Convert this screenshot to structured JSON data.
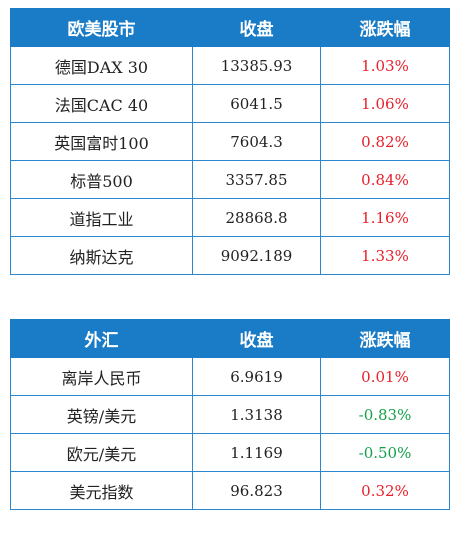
{
  "indices": {
    "headers": [
      "欧美股市",
      "收盘",
      "涨跌幅"
    ],
    "rows": [
      {
        "name": "德国DAX 30",
        "close": "13385.93",
        "change": "1.03%",
        "direction": "up"
      },
      {
        "name": "法国CAC 40",
        "close": "6041.5",
        "change": "1.06%",
        "direction": "up"
      },
      {
        "name": "英国富时100",
        "close": "7604.3",
        "change": "0.82%",
        "direction": "up"
      },
      {
        "name": "标普500",
        "close": "3357.85",
        "change": "0.84%",
        "direction": "up"
      },
      {
        "name": "道指工业",
        "close": "28868.8",
        "change": "1.16%",
        "direction": "up"
      },
      {
        "name": "纳斯达克",
        "close": "9092.189",
        "change": "1.33%",
        "direction": "up"
      }
    ]
  },
  "fx": {
    "headers": [
      "外汇",
      "收盘",
      "涨跌幅"
    ],
    "rows": [
      {
        "name": "离岸人民币",
        "close": "6.9619",
        "change": "0.01%",
        "direction": "up"
      },
      {
        "name": "英镑/美元",
        "close": "1.3138",
        "change": "-0.83%",
        "direction": "down"
      },
      {
        "name": "欧元/美元",
        "close": "1.1169",
        "change": "-0.50%",
        "direction": "down"
      },
      {
        "name": "美元指数",
        "close": "96.823",
        "change": "0.32%",
        "direction": "up"
      }
    ]
  },
  "colors": {
    "header_bg": "#1a7cc6",
    "border": "#2a86cf",
    "up": "#e8202a",
    "down": "#13a14a"
  }
}
